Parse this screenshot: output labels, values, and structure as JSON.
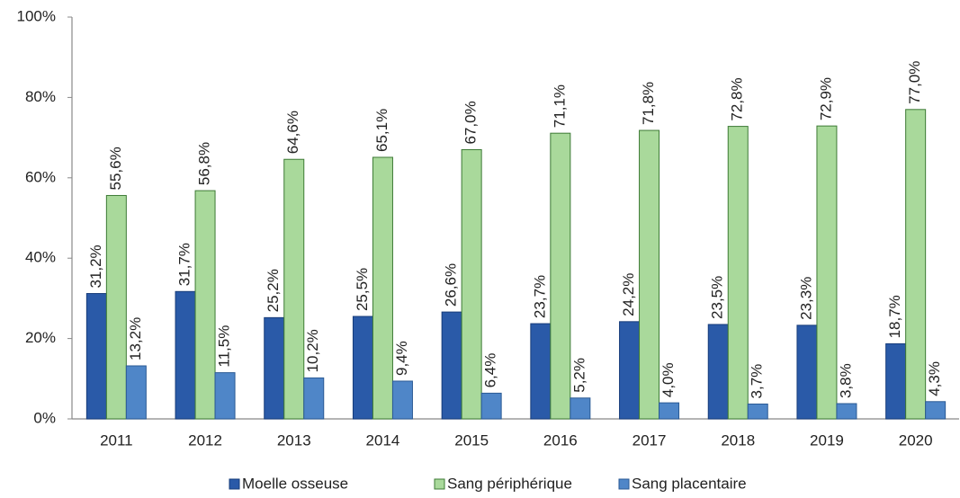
{
  "chart_data": {
    "type": "bar",
    "categories": [
      "2011",
      "2012",
      "2013",
      "2014",
      "2015",
      "2016",
      "2017",
      "2018",
      "2019",
      "2020"
    ],
    "series": [
      {
        "name": "Moelle osseuse",
        "color": "#2a5aa8",
        "values": [
          31.2,
          31.7,
          25.2,
          25.5,
          26.6,
          23.7,
          24.2,
          23.5,
          23.3,
          18.7
        ],
        "value_labels": [
          "31,2%",
          "31,7%",
          "25,2%",
          "25,5%",
          "26,6%",
          "23,7%",
          "24,2%",
          "23,5%",
          "23,3%",
          "18,7%"
        ]
      },
      {
        "name": "Sang périphérique",
        "color": "#a9d99b",
        "values": [
          55.6,
          56.8,
          64.6,
          65.1,
          67.0,
          71.1,
          71.8,
          72.8,
          72.9,
          77.0
        ],
        "value_labels": [
          "55,6%",
          "56,8%",
          "64,6%",
          "65,1%",
          "67,0%",
          "71,1%",
          "71,8%",
          "72,8%",
          "72,9%",
          "77,0%"
        ]
      },
      {
        "name": "Sang placentaire",
        "color": "#4f86c8",
        "values": [
          13.2,
          11.5,
          10.2,
          9.4,
          6.4,
          5.2,
          4.0,
          3.7,
          3.8,
          4.3
        ],
        "value_labels": [
          "13,2%",
          "11,5%",
          "10,2%",
          "9,4%",
          "6,4%",
          "5,2%",
          "4,0%",
          "3,7%",
          "3,8%",
          "4,3%"
        ]
      }
    ],
    "ylim": [
      0,
      100
    ],
    "yticks": [
      {
        "value": 0,
        "label": "0%"
      },
      {
        "value": 20,
        "label": "20%"
      },
      {
        "value": 40,
        "label": "40%"
      },
      {
        "value": 60,
        "label": "60%"
      },
      {
        "value": 80,
        "label": "80%"
      },
      {
        "value": 100,
        "label": "100%"
      }
    ],
    "grid": false
  }
}
